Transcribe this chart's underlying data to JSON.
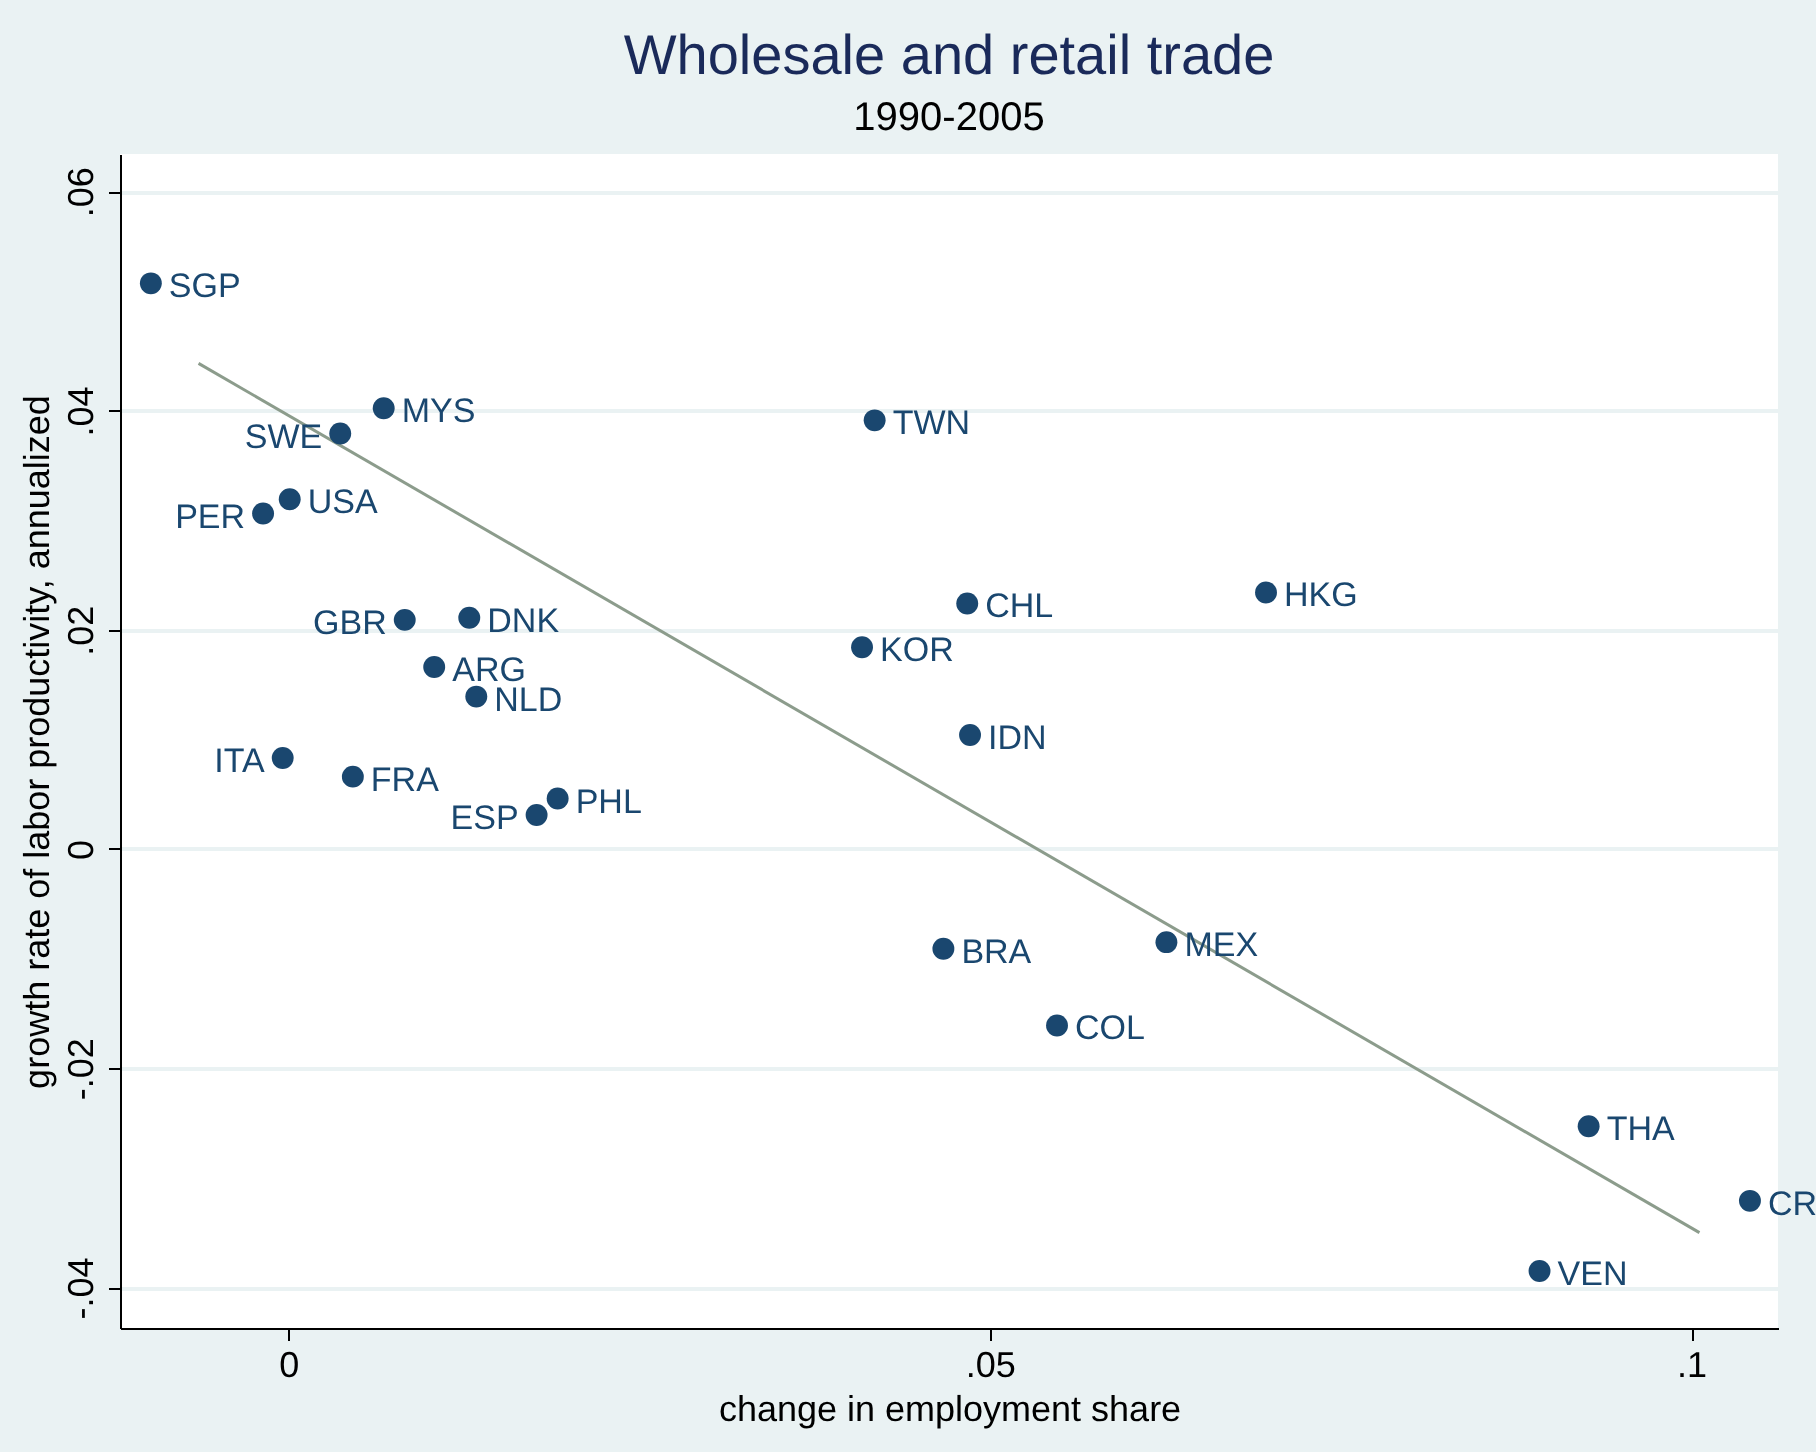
{
  "chart_data": {
    "type": "scatter",
    "title": "Wholesale and retail trade",
    "subtitle": "1990-2005",
    "xlabel": "change in employment share",
    "ylabel": "growth rate of labor productivity, annualized",
    "xlim": [
      -0.012,
      0.1062
    ],
    "ylim": [
      -0.0437,
      0.0634
    ],
    "xticks": [
      {
        "value": 0,
        "label": "0"
      },
      {
        "value": 0.05,
        "label": ".05"
      },
      {
        "value": 0.1,
        "label": ".1"
      }
    ],
    "yticks": [
      {
        "value": -0.04,
        "label": "-.04"
      },
      {
        "value": -0.02,
        "label": "-.02"
      },
      {
        "value": 0,
        "label": "0"
      },
      {
        "value": 0.02,
        "label": ".02"
      },
      {
        "value": 0.04,
        "label": ".04"
      },
      {
        "value": 0.06,
        "label": ".06"
      }
    ],
    "grid": "y",
    "marker": "circle",
    "series": [
      {
        "name": "SGP",
        "color": "#1a476f",
        "x": [
          -0.0098
        ],
        "values": [
          0.0516
        ]
      },
      {
        "name": "MYS",
        "color": "#1a476f",
        "x": [
          0.0068
        ],
        "values": [
          0.0402
        ]
      },
      {
        "name": "SWE",
        "color": "#1a476f",
        "x": [
          0.0037
        ],
        "values": [
          0.0379
        ]
      },
      {
        "name": "USA",
        "color": "#1a476f",
        "x": [
          0.0001
        ],
        "values": [
          0.0319
        ]
      },
      {
        "name": "PER",
        "color": "#1a476f",
        "x": [
          -0.0018
        ],
        "values": [
          0.0306
        ]
      },
      {
        "name": "GBR",
        "color": "#1a476f",
        "x": [
          0.0083
        ],
        "values": [
          0.0209
        ]
      },
      {
        "name": "DNK",
        "color": "#1a476f",
        "x": [
          0.0129
        ],
        "values": [
          0.0211
        ]
      },
      {
        "name": "ARG",
        "color": "#1a476f",
        "x": [
          0.0104
        ],
        "values": [
          0.0166
        ]
      },
      {
        "name": "NLD",
        "color": "#1a476f",
        "x": [
          0.0134
        ],
        "values": [
          0.0139
        ]
      },
      {
        "name": "ITA",
        "color": "#1a476f",
        "x": [
          -0.0004
        ],
        "values": [
          0.0083
        ]
      },
      {
        "name": "FRA",
        "color": "#1a476f",
        "x": [
          0.0046
        ],
        "values": [
          0.0066
        ]
      },
      {
        "name": "PHL",
        "color": "#1a476f",
        "x": [
          0.0192
        ],
        "values": [
          0.0046
        ]
      },
      {
        "name": "ESP",
        "color": "#1a476f",
        "x": [
          0.0177
        ],
        "values": [
          0.0031
        ]
      },
      {
        "name": "TWN",
        "color": "#1a476f",
        "x": [
          0.0418
        ],
        "values": [
          0.0391
        ]
      },
      {
        "name": "CHL",
        "color": "#1a476f",
        "x": [
          0.0484
        ],
        "values": [
          0.0224
        ]
      },
      {
        "name": "HKG",
        "color": "#1a476f",
        "x": [
          0.0697
        ],
        "values": [
          0.0234
        ]
      },
      {
        "name": "KOR",
        "color": "#1a476f",
        "x": [
          0.0409
        ],
        "values": [
          0.0184
        ]
      },
      {
        "name": "IDN",
        "color": "#1a476f",
        "x": [
          0.0486
        ],
        "values": [
          0.0104
        ]
      },
      {
        "name": "BRA",
        "color": "#1a476f",
        "x": [
          0.0467
        ],
        "values": [
          -0.0091
        ]
      },
      {
        "name": "MEX",
        "color": "#1a476f",
        "x": [
          0.0626
        ],
        "values": [
          -0.0085
        ]
      },
      {
        "name": "COL",
        "color": "#1a476f",
        "x": [
          0.0548
        ],
        "values": [
          -0.0161
        ]
      },
      {
        "name": "THA",
        "color": "#1a476f",
        "x": [
          0.0927
        ],
        "values": [
          -0.0253
        ]
      },
      {
        "name": "CR",
        "color": "#1a476f",
        "x": [
          0.1042
        ],
        "values": [
          -0.0321
        ]
      },
      {
        "name": "VEN",
        "color": "#1a476f",
        "x": [
          0.0892
        ],
        "values": [
          -0.0385
        ]
      },
      {
        "type": "line",
        "marker": "none",
        "color": "#8c9c8c",
        "x": [
          -0.0064,
          0.1006
        ],
        "values": [
          0.0443,
          -0.035
        ]
      }
    ]
  }
}
